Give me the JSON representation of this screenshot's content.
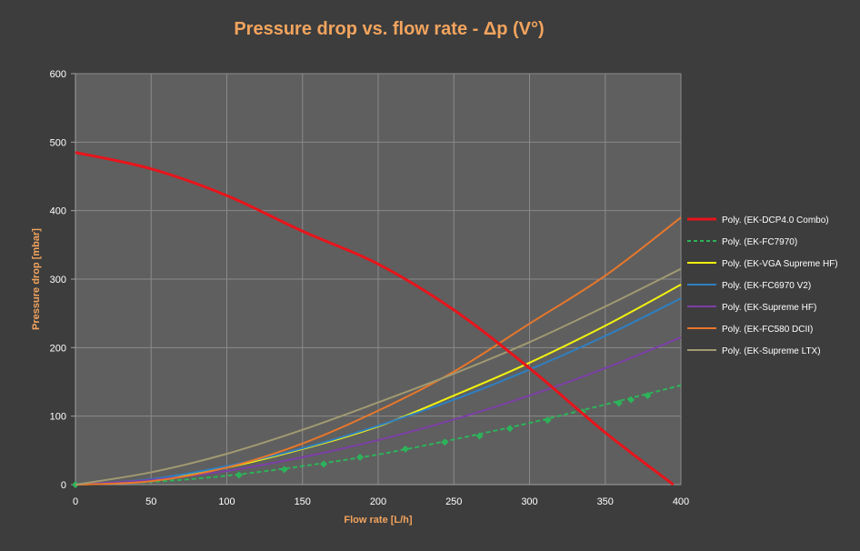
{
  "chart_data": {
    "type": "line",
    "title": "Pressure drop vs. flow rate - Δp (V°)",
    "xlabel": "Flow rate [L/h]",
    "ylabel": "Pressure drop [mbar]",
    "xlim": [
      0,
      400
    ],
    "ylim": [
      0,
      600
    ],
    "x_ticks": [
      "0",
      "50",
      "100",
      "150",
      "200",
      "250",
      "300",
      "350",
      "400"
    ],
    "y_ticks": [
      "0",
      "100",
      "200",
      "300",
      "400",
      "500",
      "600"
    ],
    "grid": true,
    "legend_position": "right",
    "series": [
      {
        "name": "Poly. (EK-DCP4.0 Combo)",
        "color": "#e8141b",
        "style": "solid",
        "x": [
          0,
          50,
          100,
          150,
          200,
          250,
          300,
          350,
          395
        ],
        "values": [
          485,
          461,
          422,
          370,
          322,
          255,
          170,
          76,
          0
        ]
      },
      {
        "name": "Poly. (EK-FC7970)",
        "color": "#2db35a",
        "style": "dashed",
        "marker": "diamond",
        "x": [
          0,
          50,
          100,
          150,
          200,
          250,
          300,
          350,
          400
        ],
        "values": [
          0,
          4,
          13,
          27,
          44,
          66,
          90,
          117,
          145
        ],
        "marker_points": {
          "x": [
            0,
            108,
            138,
            164,
            188,
            218,
            244,
            267,
            287,
            312,
            335,
            359,
            367,
            378
          ],
          "values": [
            0,
            14,
            22,
            30,
            40,
            52,
            62,
            71,
            82,
            94,
            106,
            119,
            124,
            130
          ]
        }
      },
      {
        "name": "Poly. (EK-VGA Supreme HF)",
        "color": "#f2f20f",
        "style": "solid",
        "x": [
          0,
          50,
          100,
          150,
          200,
          250,
          300,
          350,
          400
        ],
        "values": [
          0,
          7,
          25,
          52,
          85,
          130,
          178,
          232,
          292
        ]
      },
      {
        "name": "Poly. (EK-FC6970 V2)",
        "color": "#2f7fc1",
        "style": "solid",
        "x": [
          0,
          50,
          100,
          150,
          200,
          250,
          300,
          350,
          400
        ],
        "values": [
          0,
          8,
          27,
          53,
          86,
          124,
          168,
          217,
          272
        ]
      },
      {
        "name": "Poly. (EK-Supreme HF)",
        "color": "#7c3fa6",
        "style": "solid",
        "x": [
          0,
          50,
          100,
          150,
          200,
          250,
          300,
          350,
          400
        ],
        "values": [
          0,
          7,
          20,
          40,
          65,
          95,
          130,
          170,
          215
        ]
      },
      {
        "name": "Poly. (EK-FC580 DCII)",
        "color": "#e8772b",
        "style": "solid",
        "x": [
          0,
          50,
          100,
          150,
          200,
          250,
          300,
          350,
          400
        ],
        "values": [
          0,
          5,
          25,
          60,
          108,
          165,
          235,
          305,
          390
        ]
      },
      {
        "name": "Poly. (EK-Supreme LTX)",
        "color": "#a09a72",
        "style": "solid",
        "x": [
          0,
          50,
          100,
          150,
          200,
          250,
          300,
          350,
          400
        ],
        "values": [
          0,
          18,
          45,
          80,
          120,
          162,
          208,
          260,
          315
        ]
      }
    ]
  },
  "colors": {
    "background": "#3d3d3d",
    "plot_area": "#5f5f5f",
    "grid": "#8a8a8a",
    "axis_text": "#ffffff",
    "title": "#f2a45e",
    "axis_title": "#f2a45e"
  }
}
